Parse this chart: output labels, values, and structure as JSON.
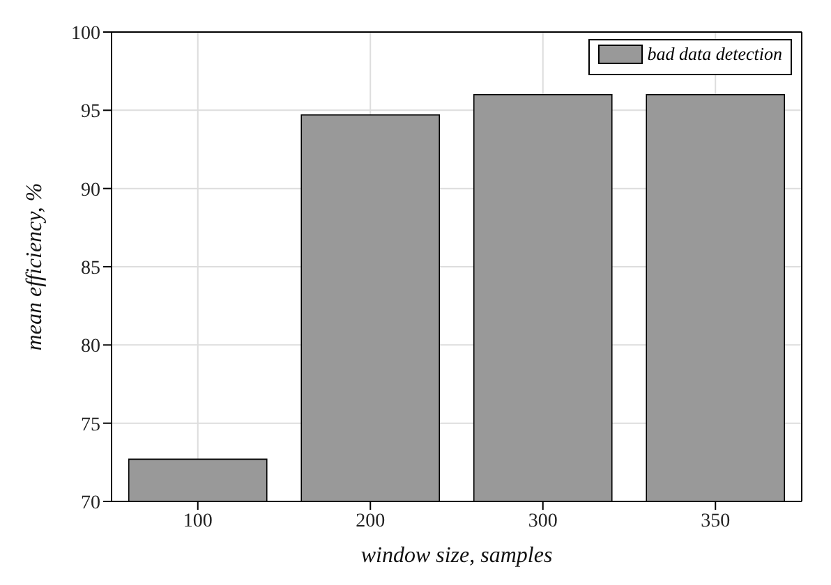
{
  "chart_data": {
    "type": "bar",
    "xlabel": "window size, samples",
    "ylabel": "mean efficiency, %",
    "categories": [
      "100",
      "200",
      "300",
      "350"
    ],
    "series": [
      {
        "name": "bad data detection",
        "color": "#999999",
        "values": [
          72.7,
          94.7,
          96.0,
          96.0
        ]
      }
    ],
    "ylim": [
      70,
      100
    ],
    "yticks": [
      70,
      75,
      80,
      85,
      90,
      95,
      100
    ],
    "grid": true,
    "legend": "top right"
  }
}
